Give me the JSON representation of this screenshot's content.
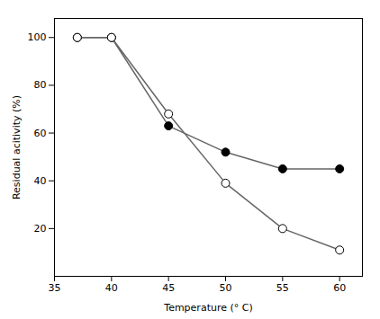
{
  "chart_data": {
    "type": "line",
    "xlabel": "Temperature (° C)",
    "ylabel": "Residual acitivity (%)",
    "x": [
      37,
      40,
      45,
      50,
      55,
      60
    ],
    "series": [
      {
        "color": "#666666",
        "marker": "filled_circle",
        "line_style": "solid",
        "values": [
          100,
          100,
          63,
          52,
          45,
          45
        ]
      },
      {
        "color": "#666666",
        "marker": "open_circle",
        "line_style": "solid",
        "values": [
          100,
          100,
          68,
          39,
          20,
          11
        ]
      }
    ],
    "xlim": [
      35,
      62
    ],
    "ylim": [
      0,
      108
    ],
    "xticks": [
      35,
      40,
      45,
      50,
      55,
      60
    ],
    "yticks": [
      20,
      40,
      60,
      80,
      100
    ]
  }
}
